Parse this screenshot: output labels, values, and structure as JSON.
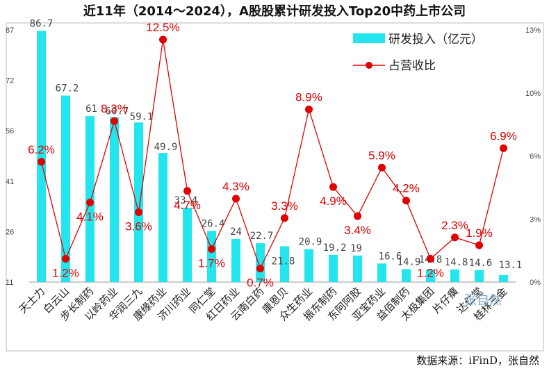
{
  "chart_data": {
    "type": "bar+line",
    "title": "近11年（2014～2024），A股股累计研发投入Top20中药上市公司",
    "categories": [
      "天士力",
      "白云山",
      "步长制药",
      "以岭药业",
      "华润三九",
      "康缘药业",
      "济川药业",
      "同仁堂",
      "红日药业",
      "云南白药",
      "康恩贝",
      "众生药业",
      "振东制药",
      "东阿阿胶",
      "亚宝药业",
      "益佰制药",
      "太极集团",
      "片仔癀",
      "达仁堂",
      "桂林三金"
    ],
    "series": [
      {
        "name": "研发投入（亿元）",
        "type": "bar",
        "axis": "left",
        "color": "#22e5ee",
        "values": [
          86.7,
          67.2,
          61,
          60.7,
          59.1,
          49.9,
          33.4,
          26.4,
          24,
          22.7,
          21.8,
          20.9,
          19.2,
          19,
          16.6,
          14.9,
          14.8,
          14.8,
          14.6,
          13.1
        ],
        "labels": [
          "86.7",
          "67.2",
          "61",
          "60.7",
          "59.1",
          "49.9",
          "33.4",
          "26.4",
          "24",
          "22.7",
          "21.8",
          "20.9",
          "19.2",
          "19",
          "16.6",
          "14.9",
          "14.8",
          "14.8",
          "14.6",
          "13.1"
        ]
      },
      {
        "name": "占营收比",
        "type": "line",
        "axis": "right",
        "color": "#e00000",
        "values": [
          6.2,
          1.2,
          4.1,
          8.3,
          3.6,
          12.5,
          4.7,
          1.7,
          4.3,
          0.7,
          3.3,
          8.9,
          4.9,
          3.4,
          5.9,
          4.2,
          1.2,
          2.3,
          1.9,
          6.9
        ],
        "labels": [
          "6.2%",
          "1.2%",
          "4.1%",
          "8.3%",
          "3.6%",
          "12.5%",
          "4.7%",
          "1.7%",
          "4.3%",
          "0.7%",
          "3.3%",
          "8.9%",
          "4.9%",
          "3.4%",
          "5.9%",
          "4.2%",
          "1.2%",
          "2.3%",
          "1.9%",
          "6.9%"
        ]
      }
    ],
    "left_axis": {
      "ylim": [
        11,
        87
      ],
      "ticks": [
        "87",
        "72",
        "56",
        "41",
        "26",
        "11"
      ]
    },
    "right_axis": {
      "ylim": [
        0,
        13
      ],
      "ticks": [
        "13%",
        "10%",
        "6%",
        "3%",
        "0%"
      ]
    },
    "legend_position": "top-right",
    "source": "数据来源：iFinD，张自然",
    "watermark": "张自然"
  },
  "colors": {
    "bar": "#22e5ee",
    "line": "#e00000",
    "frame": "#bbbbbb"
  }
}
